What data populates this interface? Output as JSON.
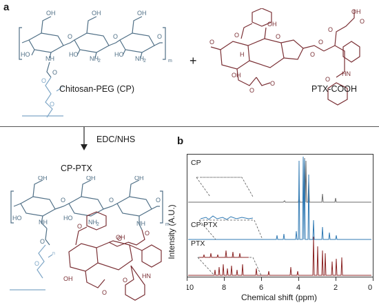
{
  "panel_a": {
    "label": "a",
    "reactant1_name": "Chitosan-PEG (CP)",
    "reactant2_name": "PTX-COOH",
    "plus": "+",
    "reagent": "EDC/NHS",
    "product_name": "CP-PTX"
  },
  "panel_b": {
    "label": "b",
    "ylabel": "Intensity (A.U.)",
    "xlabel": "Chemical shift (ppm)",
    "x_ticks": [
      "10",
      "8",
      "6",
      "4",
      "2",
      "0"
    ],
    "spectra": [
      {
        "name": "CP",
        "color": "#6b6b6b"
      },
      {
        "name": "CP-PTX",
        "color": "#2f79b3"
      },
      {
        "name": "PTX",
        "color": "#8b2525"
      }
    ]
  },
  "colors": {
    "chitosan": "#4f6f86",
    "peg": "#7fa7c7",
    "ptx": "#7a2f34",
    "text": "#1a1a1a"
  }
}
